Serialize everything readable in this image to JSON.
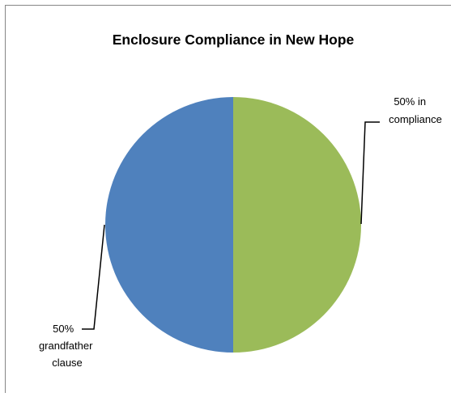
{
  "chart_data": {
    "type": "pie",
    "title": "Enclosure Compliance in New Hope",
    "slices": [
      {
        "value": 50,
        "label_lines": [
          "50% in",
          "compliance"
        ],
        "color": "#9bbb59"
      },
      {
        "value": 50,
        "label_lines": [
          "50%",
          "grandfather",
          "clause"
        ],
        "color": "#4f81bd"
      }
    ],
    "start_angle": "12 o'clock",
    "direction": "clockwise",
    "legend": "none",
    "border_color": "#868686"
  }
}
